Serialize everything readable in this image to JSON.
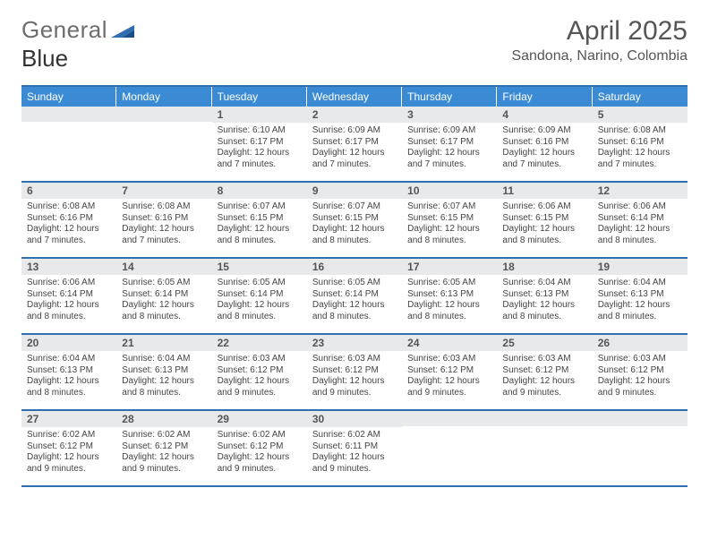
{
  "logo": {
    "text_gray": "General",
    "text_blue": "Blue"
  },
  "header": {
    "month": "April 2025",
    "location": "Sandona, Narino, Colombia"
  },
  "colors": {
    "accent": "#2f6fb0",
    "header_bg": "#3b8bd4",
    "daynum_bg": "#e7e9eb",
    "text": "#444444"
  },
  "daynames": [
    "Sunday",
    "Monday",
    "Tuesday",
    "Wednesday",
    "Thursday",
    "Friday",
    "Saturday"
  ],
  "weeks": [
    [
      null,
      null,
      {
        "n": "1",
        "sunrise": "6:10 AM",
        "sunset": "6:17 PM",
        "daylight": "12 hours and 7 minutes."
      },
      {
        "n": "2",
        "sunrise": "6:09 AM",
        "sunset": "6:17 PM",
        "daylight": "12 hours and 7 minutes."
      },
      {
        "n": "3",
        "sunrise": "6:09 AM",
        "sunset": "6:17 PM",
        "daylight": "12 hours and 7 minutes."
      },
      {
        "n": "4",
        "sunrise": "6:09 AM",
        "sunset": "6:16 PM",
        "daylight": "12 hours and 7 minutes."
      },
      {
        "n": "5",
        "sunrise": "6:08 AM",
        "sunset": "6:16 PM",
        "daylight": "12 hours and 7 minutes."
      }
    ],
    [
      {
        "n": "6",
        "sunrise": "6:08 AM",
        "sunset": "6:16 PM",
        "daylight": "12 hours and 7 minutes."
      },
      {
        "n": "7",
        "sunrise": "6:08 AM",
        "sunset": "6:16 PM",
        "daylight": "12 hours and 7 minutes."
      },
      {
        "n": "8",
        "sunrise": "6:07 AM",
        "sunset": "6:15 PM",
        "daylight": "12 hours and 8 minutes."
      },
      {
        "n": "9",
        "sunrise": "6:07 AM",
        "sunset": "6:15 PM",
        "daylight": "12 hours and 8 minutes."
      },
      {
        "n": "10",
        "sunrise": "6:07 AM",
        "sunset": "6:15 PM",
        "daylight": "12 hours and 8 minutes."
      },
      {
        "n": "11",
        "sunrise": "6:06 AM",
        "sunset": "6:15 PM",
        "daylight": "12 hours and 8 minutes."
      },
      {
        "n": "12",
        "sunrise": "6:06 AM",
        "sunset": "6:14 PM",
        "daylight": "12 hours and 8 minutes."
      }
    ],
    [
      {
        "n": "13",
        "sunrise": "6:06 AM",
        "sunset": "6:14 PM",
        "daylight": "12 hours and 8 minutes."
      },
      {
        "n": "14",
        "sunrise": "6:05 AM",
        "sunset": "6:14 PM",
        "daylight": "12 hours and 8 minutes."
      },
      {
        "n": "15",
        "sunrise": "6:05 AM",
        "sunset": "6:14 PM",
        "daylight": "12 hours and 8 minutes."
      },
      {
        "n": "16",
        "sunrise": "6:05 AM",
        "sunset": "6:14 PM",
        "daylight": "12 hours and 8 minutes."
      },
      {
        "n": "17",
        "sunrise": "6:05 AM",
        "sunset": "6:13 PM",
        "daylight": "12 hours and 8 minutes."
      },
      {
        "n": "18",
        "sunrise": "6:04 AM",
        "sunset": "6:13 PM",
        "daylight": "12 hours and 8 minutes."
      },
      {
        "n": "19",
        "sunrise": "6:04 AM",
        "sunset": "6:13 PM",
        "daylight": "12 hours and 8 minutes."
      }
    ],
    [
      {
        "n": "20",
        "sunrise": "6:04 AM",
        "sunset": "6:13 PM",
        "daylight": "12 hours and 8 minutes."
      },
      {
        "n": "21",
        "sunrise": "6:04 AM",
        "sunset": "6:13 PM",
        "daylight": "12 hours and 8 minutes."
      },
      {
        "n": "22",
        "sunrise": "6:03 AM",
        "sunset": "6:12 PM",
        "daylight": "12 hours and 9 minutes."
      },
      {
        "n": "23",
        "sunrise": "6:03 AM",
        "sunset": "6:12 PM",
        "daylight": "12 hours and 9 minutes."
      },
      {
        "n": "24",
        "sunrise": "6:03 AM",
        "sunset": "6:12 PM",
        "daylight": "12 hours and 9 minutes."
      },
      {
        "n": "25",
        "sunrise": "6:03 AM",
        "sunset": "6:12 PM",
        "daylight": "12 hours and 9 minutes."
      },
      {
        "n": "26",
        "sunrise": "6:03 AM",
        "sunset": "6:12 PM",
        "daylight": "12 hours and 9 minutes."
      }
    ],
    [
      {
        "n": "27",
        "sunrise": "6:02 AM",
        "sunset": "6:12 PM",
        "daylight": "12 hours and 9 minutes."
      },
      {
        "n": "28",
        "sunrise": "6:02 AM",
        "sunset": "6:12 PM",
        "daylight": "12 hours and 9 minutes."
      },
      {
        "n": "29",
        "sunrise": "6:02 AM",
        "sunset": "6:12 PM",
        "daylight": "12 hours and 9 minutes."
      },
      {
        "n": "30",
        "sunrise": "6:02 AM",
        "sunset": "6:11 PM",
        "daylight": "12 hours and 9 minutes."
      },
      null,
      null,
      null
    ]
  ],
  "labels": {
    "sunrise": "Sunrise:",
    "sunset": "Sunset:",
    "daylight": "Daylight:"
  }
}
